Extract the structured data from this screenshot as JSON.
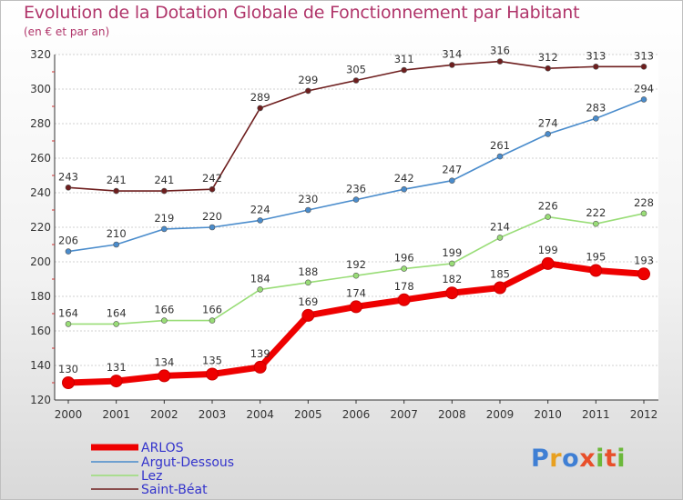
{
  "chart_data": {
    "type": "line",
    "title": "Evolution de la Dotation Globale de Fonctionnement par Habitant",
    "subtitle": "(en € et par an)",
    "xlabel": "",
    "ylabel": "",
    "x": [
      "2000",
      "2001",
      "2002",
      "2003",
      "2004",
      "2005",
      "2006",
      "2007",
      "2008",
      "2009",
      "2010",
      "2011",
      "2012"
    ],
    "ylim": [
      120,
      320
    ],
    "yticks": [
      120,
      140,
      160,
      180,
      200,
      220,
      240,
      260,
      280,
      300,
      320
    ],
    "grid": "horizontal",
    "legend_position": "bottom-left",
    "series": [
      {
        "name": "ARLOS",
        "color": "#ee0000",
        "values": [
          130,
          131,
          134,
          135,
          139,
          169,
          174,
          178,
          182,
          185,
          199,
          195,
          193
        ]
      },
      {
        "name": "Argut-Dessous",
        "color": "#4a8ccc",
        "values": [
          206,
          210,
          219,
          220,
          224,
          230,
          236,
          242,
          247,
          261,
          274,
          283,
          294
        ]
      },
      {
        "name": "Lez",
        "color": "#99dd77",
        "values": [
          164,
          164,
          166,
          166,
          184,
          188,
          192,
          196,
          199,
          214,
          226,
          222,
          228
        ]
      },
      {
        "name": "Saint-Béat",
        "color": "#6e1e1e",
        "values": [
          243,
          241,
          241,
          242,
          289,
          299,
          305,
          311,
          314,
          316,
          312,
          313,
          313
        ]
      }
    ]
  },
  "logo": {
    "letters": [
      "P",
      "r",
      "o",
      "x",
      "i",
      "t",
      "i"
    ]
  }
}
